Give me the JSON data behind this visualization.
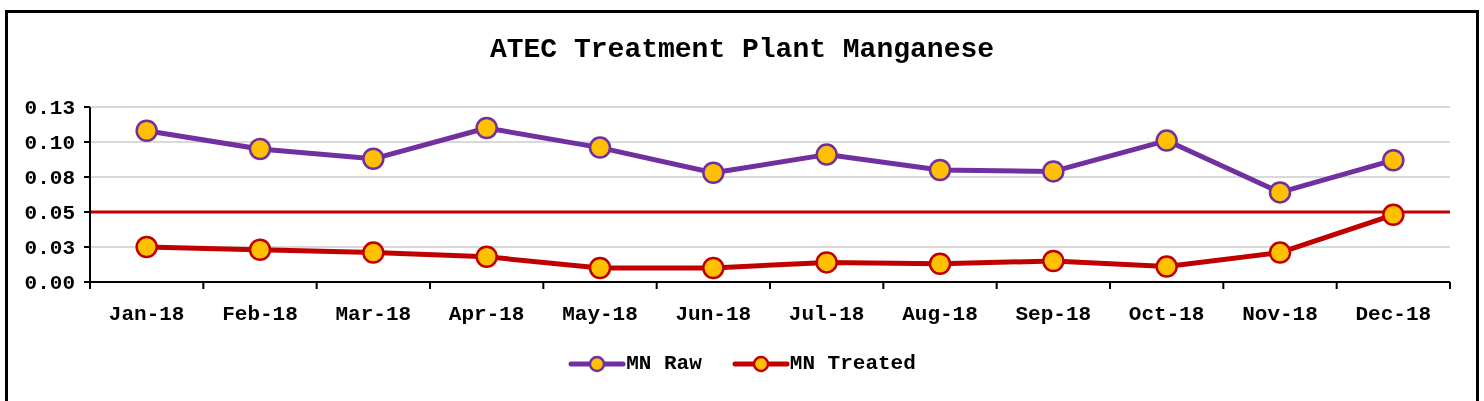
{
  "chart_data": {
    "type": "line",
    "title": "ATEC Treatment Plant Manganese",
    "categories": [
      "Jan-18",
      "Feb-18",
      "Mar-18",
      "Apr-18",
      "May-18",
      "Jun-18",
      "Jul-18",
      "Aug-18",
      "Sep-18",
      "Oct-18",
      "Nov-18",
      "Dec-18"
    ],
    "series": [
      {
        "name": "MN Raw",
        "color": "#7030a0",
        "values": [
          0.108,
          0.095,
          0.088,
          0.11,
          0.096,
          0.078,
          0.091,
          0.08,
          0.079,
          0.101,
          0.064,
          0.087
        ]
      },
      {
        "name": "MN Treated",
        "color": "#c00000",
        "values": [
          0.025,
          0.023,
          0.021,
          0.018,
          0.01,
          0.01,
          0.014,
          0.013,
          0.015,
          0.011,
          0.021,
          0.048
        ]
      }
    ],
    "ylim": [
      0,
      0.125
    ],
    "yticks": [
      {
        "value": 0,
        "label": "0.00"
      },
      {
        "value": 0.025,
        "label": "0.03"
      },
      0.05,
      {
        "value": 0.075,
        "label": "0.08"
      },
      {
        "value": 0.1,
        "label": "0.10"
      },
      {
        "value": 0.125,
        "label": "0.13"
      }
    ],
    "grid": "y",
    "legend": "bottom",
    "marker": "circle",
    "line_style": "solid",
    "ref_lines": [
      {
        "axis": "y",
        "value": 0.05,
        "color": "#c00000"
      }
    ]
  }
}
